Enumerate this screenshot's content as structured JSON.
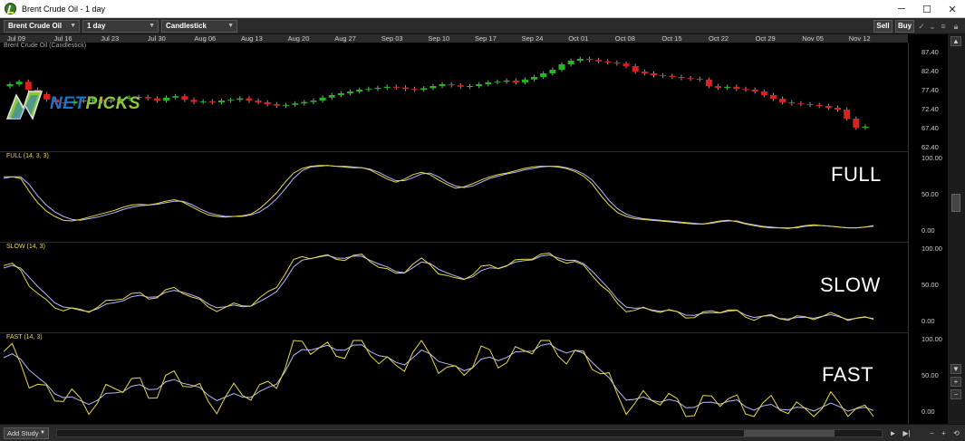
{
  "window": {
    "title": "Brent Crude Oil - 1 day"
  },
  "toolbar": {
    "symbol": "Brent Crude Oil",
    "interval": "1 day",
    "chart_type": "Candlestick",
    "sell_label": "Sell",
    "buy_label": "Buy"
  },
  "logo": {
    "net": "NET",
    "picks": "PICKS"
  },
  "price_pane": {
    "caption": "Brent Crude Oil (Candlestick)"
  },
  "dates": [
    "Jul 09",
    "Jul 16",
    "Jul 23",
    "Jul 30",
    "Aug 06",
    "Aug 13",
    "Aug 20",
    "Aug 27",
    "Sep 03",
    "Sep 10",
    "Sep 17",
    "Sep 24",
    "Oct 01",
    "Oct 08",
    "Oct 15",
    "Oct 22",
    "Oct 29",
    "Nov 05",
    "Nov 12"
  ],
  "price_axis": [
    "87.40",
    "82.40",
    "77.40",
    "72.40",
    "67.40",
    "62.40"
  ],
  "osc_axis": [
    "100.00",
    "50.00",
    "0.00"
  ],
  "studies": [
    {
      "label": "FULL (14, 3, 3)",
      "big": "FULL"
    },
    {
      "label": "SLOW (14, 3)",
      "big": "SLOW"
    },
    {
      "label": "FAST (14, 3)",
      "big": "FAST"
    }
  ],
  "bottom": {
    "add_study": "Add Study"
  },
  "colors": {
    "up": "#1fb81f",
    "down": "#d9221f",
    "k_line": "#e8d94a",
    "d_line": "#b8b8ff"
  },
  "chart_data": {
    "type": "candlestick",
    "ylim": [
      60,
      90
    ],
    "closes": [
      78.5,
      79.2,
      77.0,
      75.8,
      74.3,
      73.5,
      73.2,
      73.8,
      74.0,
      74.2,
      73.8,
      74.0,
      74.5,
      74.8,
      75.0,
      74.6,
      74.0,
      74.8,
      75.2,
      74.2,
      73.6,
      73.8,
      73.5,
      74.0,
      74.2,
      74.6,
      74.0,
      73.5,
      73.0,
      72.6,
      72.8,
      73.2,
      73.6,
      74.0,
      74.8,
      75.5,
      76.0,
      76.5,
      77.0,
      77.2,
      77.5,
      77.8,
      77.6,
      77.2,
      77.0,
      77.4,
      78.0,
      78.5,
      78.2,
      77.8,
      78.0,
      78.5,
      79.0,
      79.2,
      79.5,
      79.0,
      79.8,
      80.5,
      81.5,
      82.5,
      84.0,
      85.0,
      85.5,
      85.2,
      84.8,
      84.5,
      84.2,
      83.5,
      82.0,
      81.5,
      81.0,
      80.8,
      80.5,
      80.2,
      80.0,
      79.8,
      78.0,
      77.5,
      77.8,
      77.2,
      77.0,
      76.5,
      75.5,
      74.5,
      73.5,
      73.2,
      73.0,
      72.8,
      72.5,
      72.0,
      71.5,
      69.0,
      66.5,
      66.8
    ],
    "stoch_full": {
      "k": [
        77,
        77,
        75,
        58,
        43,
        32,
        25,
        20,
        19,
        21,
        24,
        27,
        30,
        33,
        37,
        40,
        41,
        40,
        42,
        45,
        47,
        44,
        38,
        32,
        27,
        25,
        24,
        25,
        26,
        28,
        35,
        45,
        56,
        70,
        82,
        88,
        91,
        92,
        92,
        91,
        90,
        89,
        89,
        86,
        80,
        74,
        70,
        74,
        80,
        83,
        80,
        73,
        67,
        62,
        64,
        68,
        73,
        77,
        80,
        82,
        85,
        88,
        90,
        91,
        91,
        90,
        88,
        84,
        78,
        68,
        53,
        40,
        30,
        25,
        22,
        21,
        20,
        19,
        18,
        17,
        16,
        15,
        15,
        17,
        19,
        20,
        18,
        15,
        13,
        11,
        10,
        10,
        9,
        11,
        13,
        14,
        13,
        12,
        11,
        10,
        10,
        11,
        13
      ],
      "d": [
        75,
        77,
        77,
        67,
        52,
        40,
        31,
        25,
        21,
        20,
        22,
        24,
        27,
        30,
        34,
        37,
        39,
        40,
        41,
        43,
        45,
        45,
        41,
        35,
        30,
        27,
        25,
        25,
        25,
        27,
        31,
        38,
        48,
        61,
        75,
        85,
        90,
        91,
        92,
        91,
        91,
        90,
        89,
        87,
        83,
        77,
        72,
        72,
        76,
        81,
        82,
        77,
        70,
        65,
        63,
        65,
        70,
        75,
        78,
        81,
        83,
        86,
        88,
        90,
        91,
        91,
        89,
        86,
        81,
        73,
        60,
        46,
        35,
        28,
        24,
        22,
        21,
        20,
        19,
        18,
        17,
        16,
        15,
        16,
        18,
        19,
        19,
        16,
        14,
        12,
        11,
        10,
        10,
        10,
        12,
        13,
        13,
        12,
        11,
        10,
        10,
        11,
        12
      ]
    }
  }
}
